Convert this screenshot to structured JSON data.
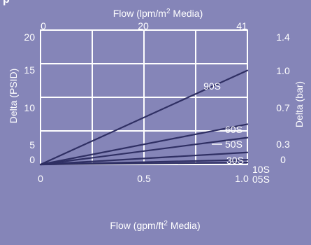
{
  "page": {
    "title": "p"
  },
  "colors": {
    "panel": "#8585b8",
    "grid": "#ffffff",
    "line": "#2f2f63",
    "text": "#ffffff"
  },
  "axes": {
    "top": {
      "label_main": "Flow (lpm/m",
      "label_sup": "2",
      "label_tail": " Media)",
      "ticks": [
        "0",
        "20",
        "41"
      ]
    },
    "bottom": {
      "label_main": "Flow (gpm/ft",
      "label_sup": "2",
      "label_tail": " Media)",
      "ticks": [
        "0",
        "0.5",
        "1.0"
      ]
    },
    "left": {
      "label": "Delta (PSID)",
      "ticks": [
        "20",
        "15",
        "10",
        "5",
        "0"
      ]
    },
    "right": {
      "label": "Delta (bar)",
      "ticks": [
        "1.4",
        "1.0",
        "0.7",
        "0.3",
        "0"
      ]
    }
  },
  "chart_data": {
    "type": "line",
    "x": [
      0,
      1.0
    ],
    "xlabel": "Flow (gpm/ft2 Media)",
    "x2label": "Flow (lpm/m2 Media)",
    "ylabel": "Delta (PSID)",
    "y2label": "Delta (bar)",
    "xlim": [
      0,
      1.0
    ],
    "ylim": [
      0,
      20
    ],
    "grid": true,
    "series": [
      {
        "name": "90S",
        "values": [
          0,
          14.0
        ]
      },
      {
        "name": "60S",
        "values": [
          0,
          6.0
        ]
      },
      {
        "name": "50S",
        "values": [
          0,
          4.0
        ]
      },
      {
        "name": "30S",
        "values": [
          0,
          1.8
        ]
      },
      {
        "name": "10S",
        "values": [
          0,
          0.7
        ]
      },
      {
        "name": "05S",
        "values": [
          0,
          0.3
        ]
      }
    ]
  }
}
